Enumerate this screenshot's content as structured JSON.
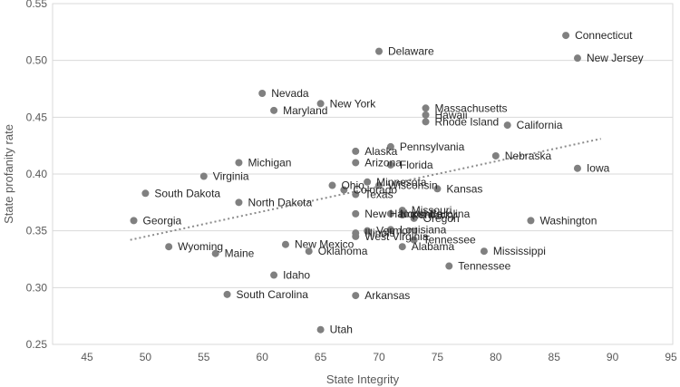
{
  "chart_data": {
    "type": "scatter",
    "xlabel": "State Integrity",
    "ylabel": "State profanity rate",
    "xlim": [
      45,
      95
    ],
    "ylim": [
      0.25,
      0.55
    ],
    "x_ticks": [
      "45",
      "50",
      "55",
      "60",
      "65",
      "70",
      "75",
      "80",
      "85",
      "90",
      "95"
    ],
    "y_ticks": [
      "0.25",
      "0.30",
      "0.35",
      "0.40",
      "0.45",
      "0.50",
      "0.55"
    ],
    "grid": "horizontal",
    "trendline": {
      "type": "linear",
      "style": "dotted",
      "x_range": [
        48.7,
        89.0
      ],
      "y_range": [
        0.342,
        0.431
      ]
    },
    "colors": {
      "points": "#808080",
      "trendline": "#8c8c8c",
      "grid": "#d9d9d9"
    },
    "points": [
      {
        "label": "Connecticut",
        "x": 86,
        "y": 0.522
      },
      {
        "label": "New Jersey",
        "x": 87,
        "y": 0.502
      },
      {
        "label": "Delaware",
        "x": 70,
        "y": 0.508
      },
      {
        "label": "Nevada",
        "x": 60,
        "y": 0.471
      },
      {
        "label": "New York",
        "x": 65,
        "y": 0.462
      },
      {
        "label": "Maryland",
        "x": 61,
        "y": 0.456
      },
      {
        "label": "Massachusetts",
        "x": 74,
        "y": 0.458
      },
      {
        "label": "Hawaii",
        "x": 74,
        "y": 0.452
      },
      {
        "label": "Rhode Island",
        "x": 74,
        "y": 0.446
      },
      {
        "label": "California",
        "x": 81,
        "y": 0.443
      },
      {
        "label": "Pennsylvania",
        "x": 71,
        "y": 0.424
      },
      {
        "label": "Alaska",
        "x": 68,
        "y": 0.42
      },
      {
        "label": "Nebraska",
        "x": 80,
        "y": 0.416
      },
      {
        "label": "Arizona",
        "x": 68,
        "y": 0.41
      },
      {
        "label": "Florida",
        "x": 71,
        "y": 0.408
      },
      {
        "label": "Michigan",
        "x": 58,
        "y": 0.41
      },
      {
        "label": "Iowa",
        "x": 87,
        "y": 0.405
      },
      {
        "label": "Virginia",
        "x": 55,
        "y": 0.398
      },
      {
        "label": "Minnesota",
        "x": 69,
        "y": 0.393
      },
      {
        "label": "Wisconsin",
        "x": 70,
        "y": 0.39
      },
      {
        "label": "Ohio",
        "x": 66,
        "y": 0.39
      },
      {
        "label": "Colorado",
        "x": 67,
        "y": 0.386
      },
      {
        "label": "Kansas",
        "x": 75,
        "y": 0.387
      },
      {
        "label": "Texas",
        "x": 68,
        "y": 0.382
      },
      {
        "label": "South Dakota",
        "x": 50,
        "y": 0.383
      },
      {
        "label": "North Dakota",
        "x": 58,
        "y": 0.375
      },
      {
        "label": "Missouri",
        "x": 72,
        "y": 0.368
      },
      {
        "label": "New Hampshire",
        "x": 68,
        "y": 0.365
      },
      {
        "label": "North Carolina",
        "x": 71,
        "y": 0.365
      },
      {
        "label": "Kentucky",
        "x": 72,
        "y": 0.364
      },
      {
        "label": "Oregon",
        "x": 73,
        "y": 0.361
      },
      {
        "label": "Washington",
        "x": 83,
        "y": 0.359
      },
      {
        "label": "Georgia",
        "x": 49,
        "y": 0.359
      },
      {
        "label": "Vermont",
        "x": 69,
        "y": 0.35
      },
      {
        "label": "Louisiana",
        "x": 71,
        "y": 0.351
      },
      {
        "label": "West Virginia",
        "x": 68,
        "y": 0.345
      },
      {
        "label": "Illinois",
        "x": 68,
        "y": 0.348
      },
      {
        "label": "Tennessee",
        "x": 73,
        "y": 0.342
      },
      {
        "label": "New Mexico",
        "x": 62,
        "y": 0.338
      },
      {
        "label": "Alabama",
        "x": 72,
        "y": 0.336
      },
      {
        "label": "Wyoming",
        "x": 52,
        "y": 0.336
      },
      {
        "label": "Oklahoma",
        "x": 64,
        "y": 0.332
      },
      {
        "label": "Mississippi",
        "x": 79,
        "y": 0.332
      },
      {
        "label": "Maine",
        "x": 56,
        "y": 0.33
      },
      {
        "label": "Tennessee",
        "x": 76,
        "y": 0.319
      },
      {
        "label": "Idaho",
        "x": 61,
        "y": 0.311
      },
      {
        "label": "South Carolina",
        "x": 57,
        "y": 0.294
      },
      {
        "label": "Arkansas",
        "x": 68,
        "y": 0.293
      },
      {
        "label": "Utah",
        "x": 65,
        "y": 0.263
      }
    ]
  }
}
